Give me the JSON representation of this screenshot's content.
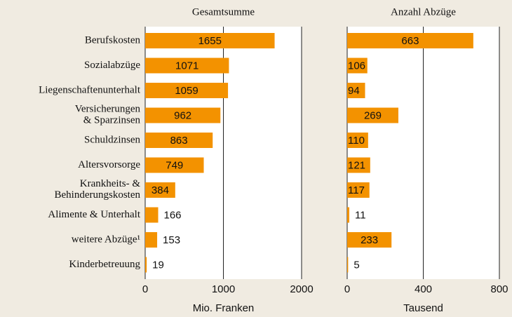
{
  "chart_data": [
    {
      "type": "hbar",
      "title": "Gesamtsumme",
      "xlabel": "Mio. Franken",
      "color": "#f39200",
      "categories": [
        "Berufskosten",
        "Sozialabzüge",
        "Liegenschaftenunterhalt",
        "Versicherungen\n& Sparzinsen",
        "Schuldzinsen",
        "Altersvorsorge",
        "Krankheits- &\nBehinderungskosten",
        "Alimente & Unterhalt",
        "weitere Abzüge¹",
        "Kinderbetreuung"
      ],
      "values": [
        1655,
        1071,
        1059,
        962,
        863,
        749,
        384,
        166,
        153,
        19
      ],
      "xlim": [
        0,
        2000
      ],
      "xticks": [
        0,
        1000,
        2000
      ],
      "grid": true
    },
    {
      "type": "hbar",
      "title": "Anzahl Abzüge",
      "xlabel": "Tausend",
      "color": "#f39200",
      "values": [
        663,
        106,
        94,
        269,
        110,
        121,
        117,
        11,
        233,
        5
      ],
      "xlim": [
        0,
        800
      ],
      "xticks": [
        0,
        400,
        800
      ],
      "grid": true
    }
  ]
}
